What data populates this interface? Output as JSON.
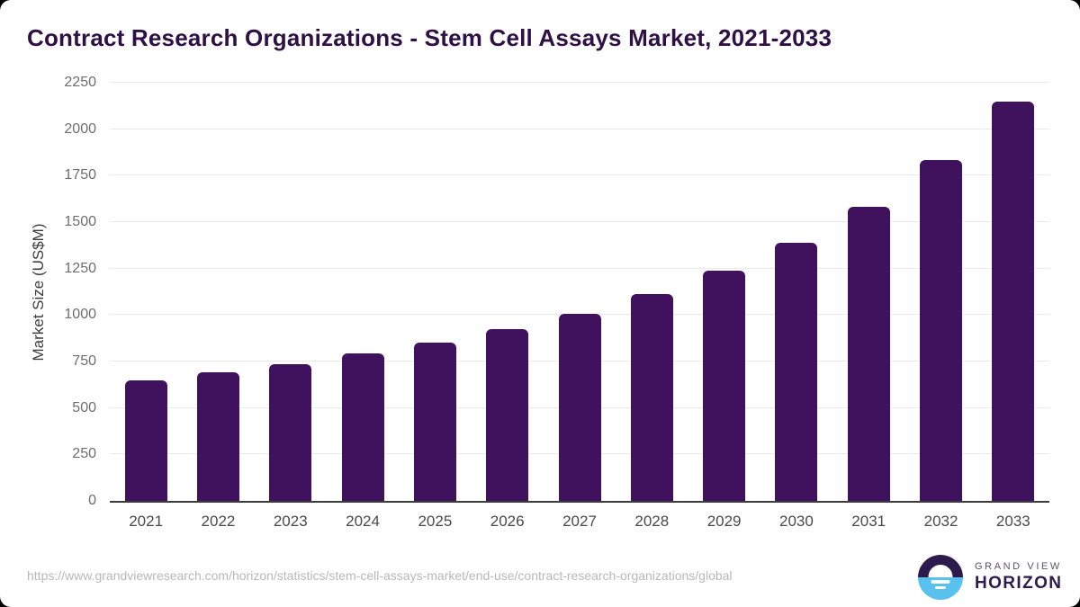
{
  "title": "Contract Research Organizations - Stem Cell Assays Market, 2021-2033",
  "chart_data": {
    "type": "bar",
    "title": "Contract Research Organizations - Stem Cell Assays Market, 2021-2033",
    "categories": [
      "2021",
      "2022",
      "2023",
      "2024",
      "2025",
      "2026",
      "2027",
      "2028",
      "2029",
      "2030",
      "2031",
      "2032",
      "2033"
    ],
    "values": [
      648,
      691,
      737,
      794,
      853,
      922,
      1008,
      1113,
      1237,
      1391,
      1580,
      1833,
      2150
    ],
    "xlabel": "",
    "ylabel": "Market Size (US$M)",
    "ylim": [
      0,
      2250
    ],
    "yticks": [
      0,
      250,
      500,
      750,
      1000,
      1250,
      1500,
      1750,
      2000,
      2250
    ],
    "grid": "horizontal",
    "legend": "none",
    "bar_color": "#40115c"
  },
  "footer": {
    "source_url": "https://www.grandviewresearch.com/horizon/statistics/stem-cell-assays-market/end-use/contract-research-organizations/global",
    "logo": {
      "line1": "GRAND VIEW",
      "line2": "HORIZON"
    }
  },
  "colors": {
    "title_text": "#2e1045",
    "bar": "#40115c",
    "logo_purple": "#2d1b4e",
    "logo_blue": "#5ac0ee",
    "axis_line": "#3c3c3c",
    "gridline": "#eaeaea",
    "y_tick_text": "#6e6e6e",
    "x_tick_text": "#4a4a4a",
    "url_text": "#b8b8b8"
  }
}
